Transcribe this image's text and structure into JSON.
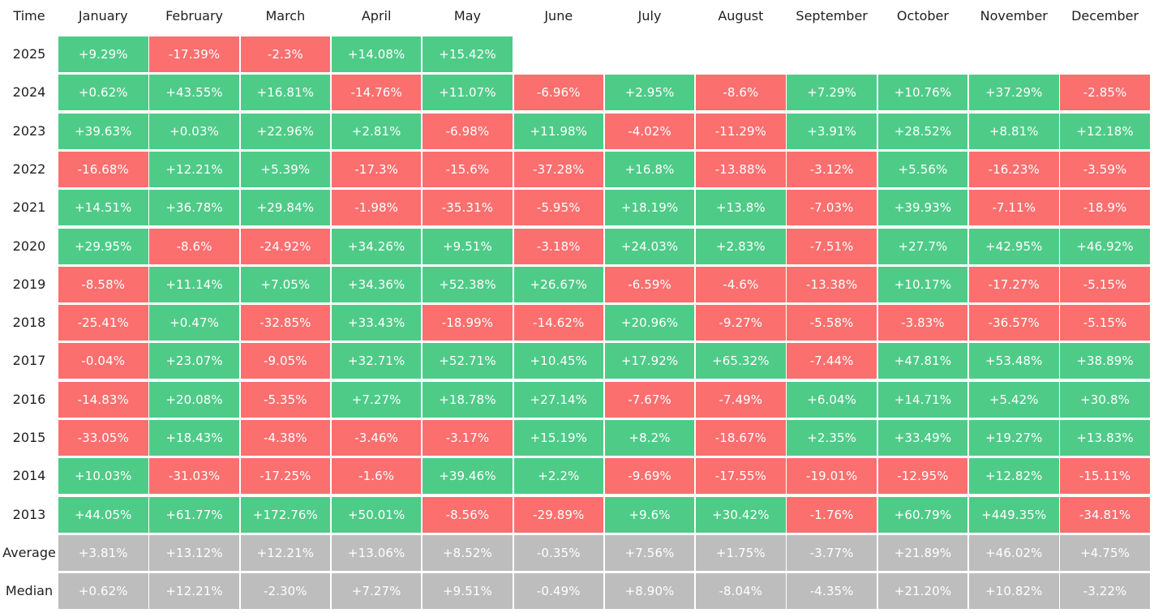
{
  "colors": {
    "positive": "#4fcb88",
    "negative": "#fb6f6f",
    "summary": "#bdbdbd",
    "header_text": "#1f1f1f",
    "cell_text": "#ffffff"
  },
  "chart_data": {
    "type": "table",
    "corner_label": "Time",
    "columns": [
      "January",
      "February",
      "March",
      "April",
      "May",
      "June",
      "July",
      "August",
      "September",
      "October",
      "November",
      "December"
    ],
    "rows": [
      {
        "label": "2025",
        "values": [
          "+9.29%",
          "-17.39%",
          "-2.3%",
          "+14.08%",
          "+15.42%",
          "",
          "",
          "",
          "",
          "",
          "",
          ""
        ]
      },
      {
        "label": "2024",
        "values": [
          "+0.62%",
          "+43.55%",
          "+16.81%",
          "-14.76%",
          "+11.07%",
          "-6.96%",
          "+2.95%",
          "-8.6%",
          "+7.29%",
          "+10.76%",
          "+37.29%",
          "-2.85%"
        ]
      },
      {
        "label": "2023",
        "values": [
          "+39.63%",
          "+0.03%",
          "+22.96%",
          "+2.81%",
          "-6.98%",
          "+11.98%",
          "-4.02%",
          "-11.29%",
          "+3.91%",
          "+28.52%",
          "+8.81%",
          "+12.18%"
        ]
      },
      {
        "label": "2022",
        "values": [
          "-16.68%",
          "+12.21%",
          "+5.39%",
          "-17.3%",
          "-15.6%",
          "-37.28%",
          "+16.8%",
          "-13.88%",
          "-3.12%",
          "+5.56%",
          "-16.23%",
          "-3.59%"
        ]
      },
      {
        "label": "2021",
        "values": [
          "+14.51%",
          "+36.78%",
          "+29.84%",
          "-1.98%",
          "-35.31%",
          "-5.95%",
          "+18.19%",
          "+13.8%",
          "-7.03%",
          "+39.93%",
          "-7.11%",
          "-18.9%"
        ]
      },
      {
        "label": "2020",
        "values": [
          "+29.95%",
          "-8.6%",
          "-24.92%",
          "+34.26%",
          "+9.51%",
          "-3.18%",
          "+24.03%",
          "+2.83%",
          "-7.51%",
          "+27.7%",
          "+42.95%",
          "+46.92%"
        ]
      },
      {
        "label": "2019",
        "values": [
          "-8.58%",
          "+11.14%",
          "+7.05%",
          "+34.36%",
          "+52.38%",
          "+26.67%",
          "-6.59%",
          "-4.6%",
          "-13.38%",
          "+10.17%",
          "-17.27%",
          "-5.15%"
        ]
      },
      {
        "label": "2018",
        "values": [
          "-25.41%",
          "+0.47%",
          "-32.85%",
          "+33.43%",
          "-18.99%",
          "-14.62%",
          "+20.96%",
          "-9.27%",
          "-5.58%",
          "-3.83%",
          "-36.57%",
          "-5.15%"
        ]
      },
      {
        "label": "2017",
        "values": [
          "-0.04%",
          "+23.07%",
          "-9.05%",
          "+32.71%",
          "+52.71%",
          "+10.45%",
          "+17.92%",
          "+65.32%",
          "-7.44%",
          "+47.81%",
          "+53.48%",
          "+38.89%"
        ]
      },
      {
        "label": "2016",
        "values": [
          "-14.83%",
          "+20.08%",
          "-5.35%",
          "+7.27%",
          "+18.78%",
          "+27.14%",
          "-7.67%",
          "-7.49%",
          "+6.04%",
          "+14.71%",
          "+5.42%",
          "+30.8%"
        ]
      },
      {
        "label": "2015",
        "values": [
          "-33.05%",
          "+18.43%",
          "-4.38%",
          "-3.46%",
          "-3.17%",
          "+15.19%",
          "+8.2%",
          "-18.67%",
          "+2.35%",
          "+33.49%",
          "+19.27%",
          "+13.83%"
        ]
      },
      {
        "label": "2014",
        "values": [
          "+10.03%",
          "-31.03%",
          "-17.25%",
          "-1.6%",
          "+39.46%",
          "+2.2%",
          "-9.69%",
          "-17.55%",
          "-19.01%",
          "-12.95%",
          "+12.82%",
          "-15.11%"
        ]
      },
      {
        "label": "2013",
        "values": [
          "+44.05%",
          "+61.77%",
          "+172.76%",
          "+50.01%",
          "-8.56%",
          "-29.89%",
          "+9.6%",
          "+30.42%",
          "-1.76%",
          "+60.79%",
          "+449.35%",
          "-34.81%"
        ]
      }
    ],
    "summary_rows": [
      {
        "label": "Average",
        "values": [
          "+3.81%",
          "+13.12%",
          "+12.21%",
          "+13.06%",
          "+8.52%",
          "-0.35%",
          "+7.56%",
          "+1.75%",
          "-3.77%",
          "+21.89%",
          "+46.02%",
          "+4.75%"
        ]
      },
      {
        "label": "Median",
        "values": [
          "+0.62%",
          "+12.21%",
          "-2.30%",
          "+7.27%",
          "+9.51%",
          "-0.49%",
          "+8.90%",
          "-8.04%",
          "-4.35%",
          "+21.20%",
          "+10.82%",
          "-3.22%"
        ]
      }
    ]
  }
}
